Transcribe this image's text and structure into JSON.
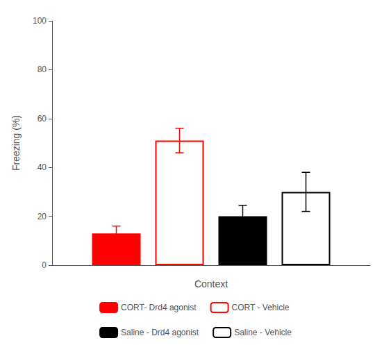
{
  "chart_data": {
    "type": "bar",
    "xlabel": "Context",
    "ylabel": "Freezing (%)",
    "categories": [
      null
    ],
    "series": [
      {
        "name": "CORT- Drd4 agonist",
        "color": "#FF0000",
        "marker": "filled",
        "values": [
          13.0
        ],
        "error": [
          3.0
        ]
      },
      {
        "name": "CORT - Vehicle",
        "color": "#FF0000",
        "marker": "hollow",
        "values": [
          51.0
        ],
        "error": [
          5.0
        ]
      },
      {
        "name": "Saline - Drd4 agonist",
        "color": "#000000",
        "marker": "filled",
        "values": [
          20.0
        ],
        "error": [
          4.5
        ]
      },
      {
        "name": "Saline - Vehicle",
        "color": "#000000",
        "marker": "hollow",
        "values": [
          30.0
        ],
        "error": [
          8.0
        ]
      }
    ],
    "ylim": [
      0,
      100
    ],
    "yticks": [
      0,
      20,
      40,
      60,
      80,
      100
    ],
    "grid": false,
    "legend": "bottom",
    "tick_labels": "y"
  }
}
